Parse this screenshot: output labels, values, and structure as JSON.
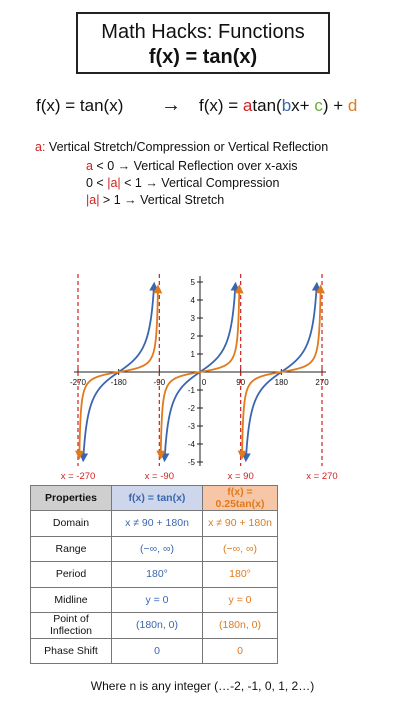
{
  "title": {
    "line1": "Math Hacks: Functions",
    "line2": "f(x) = tan(x)"
  },
  "formula": {
    "lhs": "f(x) = tan(x)",
    "arrow": "→",
    "rhs_prefix": "f(x) = ",
    "a": "a",
    "tan_open": "tan(",
    "b": "b",
    "x_plus": "x+ ",
    "c": "c",
    "close_plus": ") + ",
    "d": "d"
  },
  "definition": {
    "a_label": "a:",
    "text": "Vertical Stretch/Compression or Vertical Reflection",
    "lines": [
      {
        "pre": "",
        "highlight": "a",
        "post": " < 0 → Vertical Reflection over x-axis"
      },
      {
        "pre": "0 < ",
        "highlight": "|a|",
        "post": " < 1 → Vertical Compression"
      },
      {
        "pre": "",
        "highlight": "|a|",
        "post": " > 1 → Vertical Stretch"
      }
    ]
  },
  "chart_data": {
    "type": "line",
    "xlim": [
      -270,
      270
    ],
    "ylim": [
      -5,
      5
    ],
    "x_ticks": [
      -270,
      -180,
      -90,
      0,
      90,
      180,
      270
    ],
    "x_tick_labels": [
      "-270",
      "-180",
      "-90",
      "0",
      "90",
      "180",
      "270"
    ],
    "y_ticks": [
      -5,
      -4,
      -3,
      -2,
      -1,
      1,
      2,
      3,
      4,
      5
    ],
    "y_tick_labels": [
      "-5",
      "-4",
      "-3",
      "-2",
      "-1",
      "1",
      "2",
      "3",
      "4",
      "5"
    ],
    "series": [
      {
        "function": "tan(x)",
        "multiplier": 1,
        "color": "#3a66b0"
      },
      {
        "function": "0.25tan(x)",
        "multiplier": 0.25,
        "color": "#e07a1d"
      }
    ],
    "asymptotes": [
      -270,
      -90,
      90,
      270
    ],
    "asymptote_labels": [
      "x = -270",
      "x = -90",
      "x = 90",
      "x = 270"
    ],
    "asymptote_color": "#d02020",
    "grid": false
  },
  "table": {
    "headers": [
      "Properties",
      "f(x) = tan(x)",
      "f(x) = 0.25tan(x)"
    ],
    "rows": [
      {
        "label": "Domain",
        "tan": "x ≠ 90 + 180n",
        "quarter": "x ≠ 90 + 180n"
      },
      {
        "label": "Range",
        "tan": "(−∞, ∞)",
        "quarter": "(−∞, ∞)"
      },
      {
        "label": "Period",
        "tan": "180°",
        "quarter": "180°"
      },
      {
        "label": "Midline",
        "tan": "y = 0",
        "quarter": "y = 0"
      },
      {
        "label": "Point of Inflection",
        "tan": "(180n, 0)",
        "quarter": "(180n, 0)"
      },
      {
        "label": "Phase Shift",
        "tan": "0",
        "quarter": "0"
      }
    ]
  },
  "footnote": "Where n is any integer (…-2, -1, 0, 1, 2…)"
}
